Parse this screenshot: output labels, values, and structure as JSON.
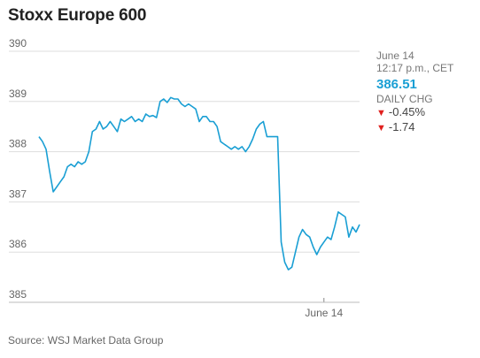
{
  "chart_data": {
    "type": "line",
    "title": "Stoxx Europe 600",
    "xlabel": "",
    "ylabel": "",
    "ylim": [
      385,
      390
    ],
    "yticks": [
      385,
      386,
      387,
      388,
      389,
      390
    ],
    "x_tick_labels": [
      {
        "label": "June 14",
        "index": 80
      }
    ],
    "grid": true,
    "series": [
      {
        "color": "#1a9fd4",
        "values": [
          388.3,
          388.2,
          388.05,
          387.6,
          387.2,
          387.3,
          387.4,
          387.5,
          387.7,
          387.75,
          387.7,
          387.8,
          387.75,
          387.8,
          388.0,
          388.4,
          388.45,
          388.6,
          388.45,
          388.5,
          388.6,
          388.5,
          388.4,
          388.65,
          388.6,
          388.65,
          388.7,
          388.6,
          388.65,
          388.6,
          388.75,
          388.7,
          388.72,
          388.68,
          389.0,
          389.05,
          388.98,
          389.08,
          389.05,
          389.05,
          388.95,
          388.9,
          388.95,
          388.9,
          388.85,
          388.6,
          388.7,
          388.7,
          388.6,
          388.6,
          388.5,
          388.2,
          388.15,
          388.1,
          388.05,
          388.1,
          388.05,
          388.1,
          388.0,
          388.1,
          388.25,
          388.45,
          388.55,
          388.6,
          388.3,
          388.3,
          388.3,
          388.3,
          386.2,
          385.8,
          385.65,
          385.7,
          386.0,
          386.3,
          386.45,
          386.35,
          386.3,
          386.1,
          385.95,
          386.1,
          386.2,
          386.3,
          386.25,
          386.5,
          386.8,
          386.75,
          386.7,
          386.3,
          386.5,
          386.4,
          386.55
        ]
      }
    ],
    "source": "Source: WSJ Market Data Group"
  },
  "info": {
    "date": "June 14",
    "time": "12:17 p.m., CET",
    "price": "386.51",
    "daily_chg_label": "DAILY CHG",
    "chg_pct": "-0.45%",
    "chg_abs": "-1.74",
    "down_color": "#e0201e"
  }
}
